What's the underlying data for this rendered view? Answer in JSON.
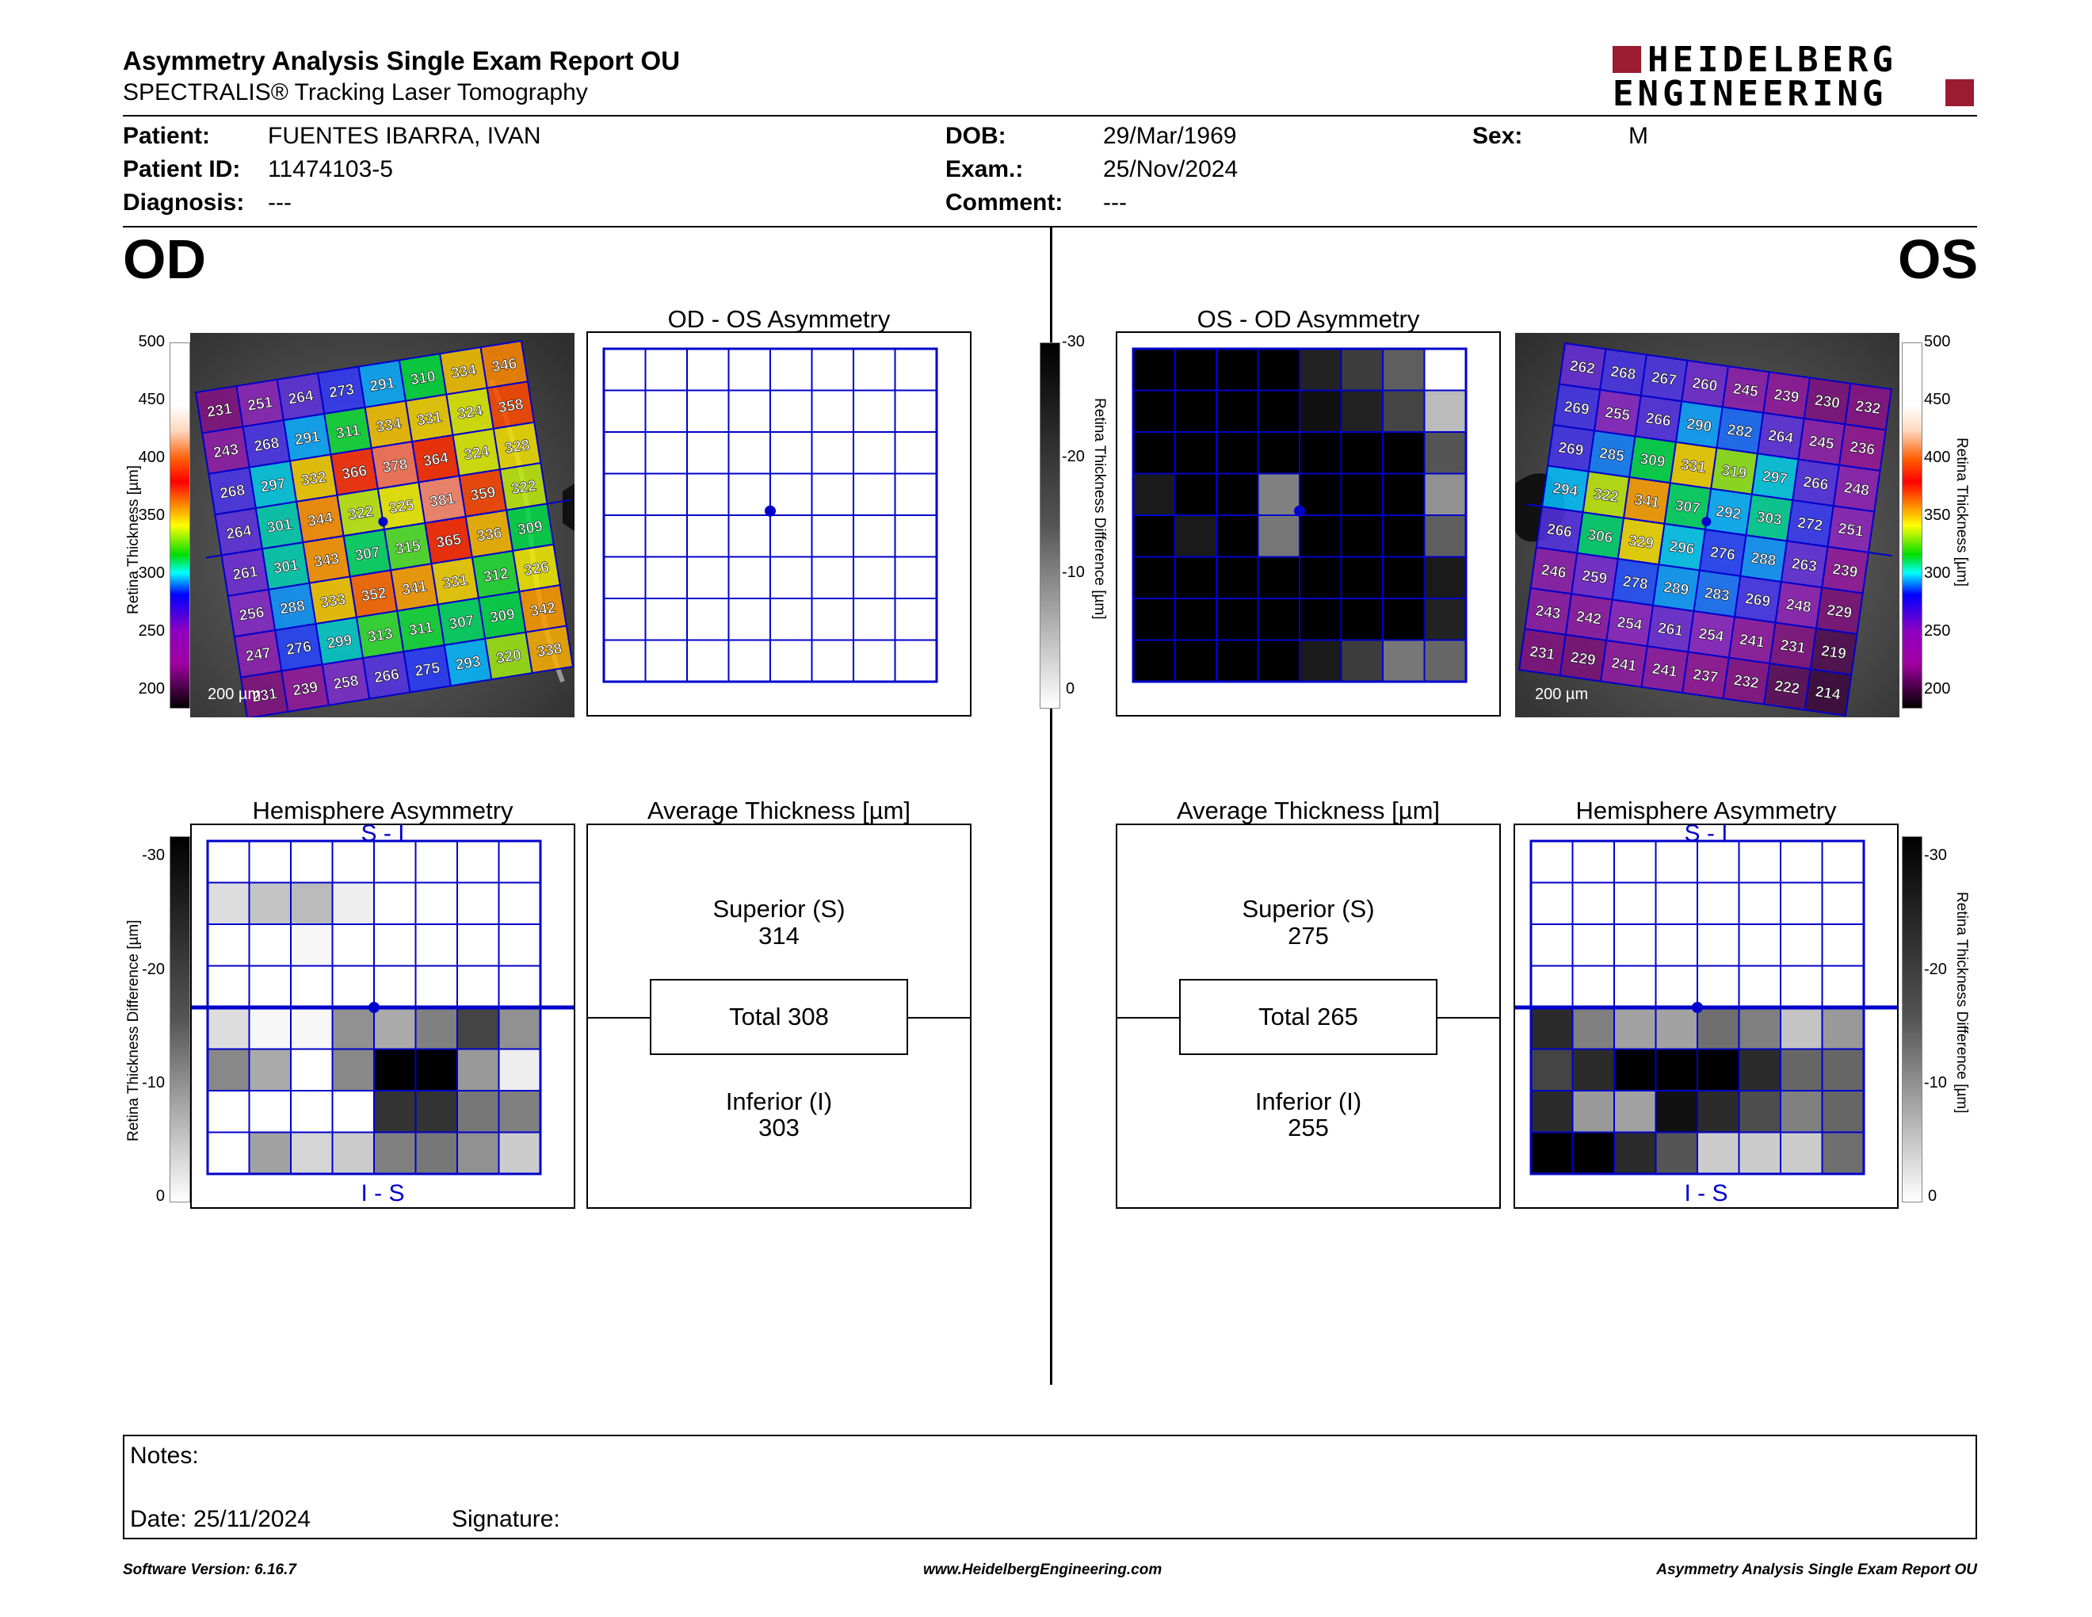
{
  "header": {
    "title": "Asymmetry Analysis Single Exam Report OU",
    "subtitle": "SPECTRALIS® Tracking Laser Tomography",
    "logo_line1": "HEIDELBERG",
    "logo_line2": "ENGINEERING"
  },
  "patient": {
    "patient_label": "Patient:",
    "patient_value": "FUENTES IBARRA, IVAN",
    "id_label": "Patient ID:",
    "id_value": "11474103-5",
    "diag_label": "Diagnosis:",
    "diag_value": "---",
    "dob_label": "DOB:",
    "dob_value": "29/Mar/1969",
    "exam_label": "Exam.:",
    "exam_value": "25/Nov/2024",
    "comment_label": "Comment:",
    "comment_value": "---",
    "sex_label": "Sex:",
    "sex_value": "M"
  },
  "od": {
    "label": "OD",
    "asym_title": "OD - OS Asymmetry",
    "hemi_title": "Hemisphere Asymmetry",
    "hemi_top": "S - I",
    "hemi_bottom": "I - S",
    "avg_title": "Average Thickness [µm]",
    "superior_label": "Superior (S)",
    "superior_value": "314",
    "total_label": "Total 308",
    "inferior_label": "Inferior (I)",
    "inferior_value": "303",
    "scale_label": "200 µm",
    "thickness_grid": [
      [
        231,
        251,
        264,
        273,
        291,
        310,
        334,
        346
      ],
      [
        243,
        268,
        291,
        311,
        334,
        331,
        324,
        358
      ],
      [
        268,
        297,
        332,
        366,
        378,
        364,
        324,
        328
      ],
      [
        264,
        301,
        344,
        322,
        325,
        381,
        359,
        322
      ],
      [
        261,
        301,
        343,
        307,
        315,
        365,
        336,
        309
      ],
      [
        256,
        288,
        333,
        352,
        341,
        331,
        312,
        326
      ],
      [
        247,
        276,
        299,
        313,
        311,
        307,
        309,
        342
      ],
      [
        231,
        239,
        258,
        266,
        275,
        293,
        320,
        338
      ]
    ],
    "hemi_grid": [
      [
        0,
        0,
        0,
        0,
        0,
        0,
        0,
        0
      ],
      [
        4,
        7,
        8,
        2,
        0,
        0,
        0,
        0
      ],
      [
        0,
        0,
        1,
        0,
        0,
        0,
        0,
        0
      ],
      [
        0,
        0,
        0,
        0,
        0,
        0,
        0,
        0
      ],
      [
        4,
        1,
        1,
        13,
        10,
        15,
        22,
        13
      ],
      [
        14,
        10,
        0,
        14,
        30,
        30,
        12,
        2
      ],
      [
        0,
        0,
        0,
        0,
        24,
        24,
        16,
        15
      ],
      [
        0,
        11,
        5,
        6,
        15,
        16,
        13,
        6
      ]
    ]
  },
  "os": {
    "label": "OS",
    "asym_title": "OS - OD Asymmetry",
    "hemi_title": "Hemisphere Asymmetry",
    "hemi_top": "S - I",
    "hemi_bottom": "I - S",
    "avg_title": "Average Thickness [µm]",
    "superior_label": "Superior (S)",
    "superior_value": "275",
    "total_label": "Total 265",
    "inferior_label": "Inferior (I)",
    "inferior_value": "255",
    "scale_label": "200 µm",
    "thickness_grid": [
      [
        262,
        268,
        267,
        260,
        245,
        239,
        230,
        232
      ],
      [
        269,
        255,
        266,
        290,
        282,
        264,
        245,
        236
      ],
      [
        269,
        285,
        309,
        331,
        319,
        297,
        266,
        248
      ],
      [
        294,
        322,
        341,
        307,
        292,
        303,
        272,
        251
      ],
      [
        266,
        306,
        329,
        296,
        276,
        288,
        263,
        239
      ],
      [
        246,
        259,
        278,
        289,
        283,
        269,
        248,
        229
      ],
      [
        243,
        242,
        254,
        261,
        254,
        241,
        231,
        219
      ],
      [
        231,
        229,
        241,
        241,
        237,
        232,
        222,
        214
      ]
    ],
    "asym_grid": [
      [
        30,
        30,
        30,
        30,
        26,
        23,
        19,
        0
      ],
      [
        30,
        30,
        30,
        30,
        28,
        26,
        22,
        8
      ],
      [
        30,
        30,
        30,
        30,
        30,
        30,
        30,
        20
      ],
      [
        27,
        30,
        30,
        15,
        30,
        30,
        30,
        13
      ],
      [
        30,
        27,
        30,
        16,
        30,
        30,
        30,
        19
      ],
      [
        30,
        30,
        30,
        30,
        30,
        30,
        30,
        27
      ],
      [
        30,
        30,
        30,
        30,
        30,
        30,
        30,
        26
      ],
      [
        30,
        30,
        30,
        30,
        27,
        23,
        16,
        18
      ]
    ],
    "hemi_grid": [
      [
        0,
        0,
        0,
        0,
        0,
        0,
        0,
        0
      ],
      [
        0,
        0,
        0,
        0,
        0,
        0,
        0,
        0
      ],
      [
        0,
        0,
        0,
        0,
        0,
        0,
        0,
        0
      ],
      [
        0,
        0,
        0,
        0,
        0,
        0,
        0,
        0
      ],
      [
        25,
        15,
        11,
        11,
        17,
        15,
        7,
        12
      ],
      [
        22,
        25,
        30,
        30,
        30,
        25,
        18,
        18
      ],
      [
        25,
        12,
        11,
        28,
        25,
        21,
        15,
        18
      ],
      [
        30,
        30,
        25,
        20,
        6,
        6,
        6,
        17
      ]
    ]
  },
  "scales": {
    "thickness_label": "Retina Thickness [µm]",
    "thickness_ticks": [
      "500",
      "450",
      "400",
      "350",
      "300",
      "250",
      "200"
    ],
    "diff_label": "Retina Thickness Difference [µm]",
    "diff_ticks": [
      "-30",
      "-20",
      "-10",
      "0"
    ]
  },
  "notes": {
    "notes_label": "Notes:",
    "date_label": "Date: 25/11/2024",
    "signature_label": "Signature:"
  },
  "footer": {
    "version": "Software Version: 6.16.7",
    "website": "www.HeidelbergEngineering.com",
    "report": "Asymmetry Analysis Single Exam Report OU"
  },
  "colors": {
    "grid_blue": "#0000cc",
    "logo_red": "#9b1b30"
  }
}
